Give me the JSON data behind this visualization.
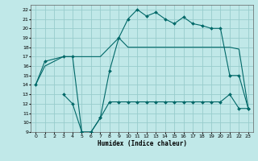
{
  "xlabel": "Humidex (Indice chaleur)",
  "bg_color": "#c0e8e8",
  "grid_color": "#98cccc",
  "line_color": "#006868",
  "xlim": [
    -0.5,
    23.5
  ],
  "ylim": [
    9,
    22.5
  ],
  "xticks": [
    0,
    1,
    2,
    3,
    4,
    5,
    6,
    7,
    8,
    9,
    10,
    11,
    12,
    13,
    14,
    15,
    16,
    17,
    18,
    19,
    20,
    21,
    22,
    23
  ],
  "yticks": [
    9,
    10,
    11,
    12,
    13,
    14,
    15,
    16,
    17,
    18,
    19,
    20,
    21,
    22
  ],
  "line1": {
    "x": [
      0,
      1,
      3,
      4,
      5,
      6,
      7,
      8,
      9,
      10,
      11,
      12,
      13,
      14,
      15,
      16,
      17,
      18,
      19,
      20,
      21,
      22,
      23
    ],
    "y": [
      14,
      16,
      17,
      17,
      17,
      17,
      17,
      18,
      19,
      18,
      18,
      18,
      18,
      18,
      18,
      18,
      18,
      18,
      18,
      18,
      18,
      17.8,
      11.5
    ]
  },
  "line2": {
    "x": [
      0,
      1,
      3,
      4,
      5,
      6,
      7,
      8,
      9,
      10,
      11,
      12,
      13,
      14,
      15,
      16,
      17,
      18,
      19,
      20,
      21,
      22,
      23
    ],
    "y": [
      14,
      16.5,
      17,
      17,
      9,
      9,
      10.5,
      15.5,
      19,
      21,
      22,
      21.3,
      21.7,
      21,
      20.5,
      21.2,
      20.5,
      20.3,
      20,
      20,
      15,
      15,
      11.5
    ]
  },
  "line3": {
    "x": [
      3,
      4,
      5,
      6,
      7,
      8,
      9,
      10,
      11,
      12,
      13,
      14,
      15,
      16,
      17,
      18,
      19,
      20,
      21,
      22,
      23
    ],
    "y": [
      13,
      12,
      9,
      9,
      10.5,
      12.2,
      12.2,
      12.2,
      12.2,
      12.2,
      12.2,
      12.2,
      12.2,
      12.2,
      12.2,
      12.2,
      12.2,
      12.2,
      13,
      11.5,
      11.5
    ]
  }
}
